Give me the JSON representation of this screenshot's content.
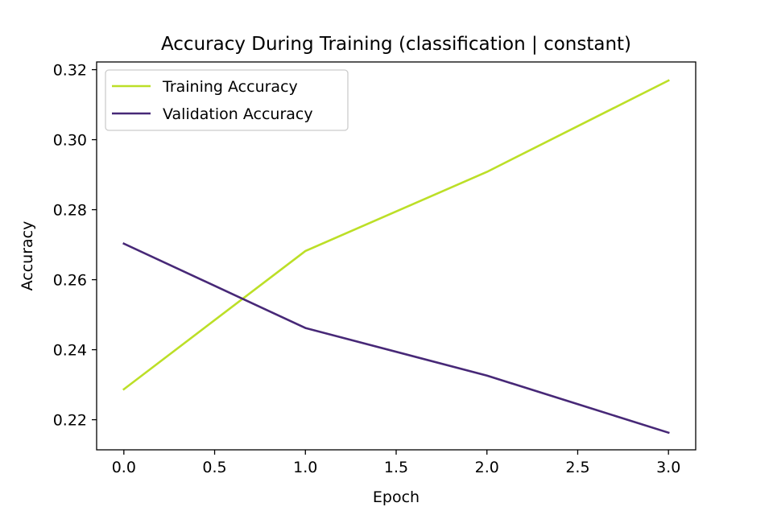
{
  "chart_data": {
    "type": "line",
    "title": "Accuracy During Training (classification | constant)",
    "xlabel": "Epoch",
    "ylabel": "Accuracy",
    "xlim": [
      -0.15,
      3.15
    ],
    "ylim": [
      0.2114,
      0.3222
    ],
    "x_ticks": [
      0.0,
      0.5,
      1.0,
      1.5,
      2.0,
      2.5,
      3.0
    ],
    "x_tick_labels": [
      "0.0",
      "0.5",
      "1.0",
      "1.5",
      "2.0",
      "2.5",
      "3.0"
    ],
    "y_ticks": [
      0.22,
      0.24,
      0.26,
      0.28,
      0.3,
      0.32
    ],
    "y_tick_labels": [
      "0.22",
      "0.24",
      "0.26",
      "0.28",
      "0.30",
      "0.32"
    ],
    "grid": false,
    "legend_position": "top-left",
    "x": [
      0,
      1,
      2,
      3
    ],
    "series": [
      {
        "name": "Training Accuracy",
        "color": "#bcdf27",
        "values": [
          0.2287,
          0.2682,
          0.2908,
          0.3169
        ]
      },
      {
        "name": "Validation Accuracy",
        "color": "#472877",
        "values": [
          0.2703,
          0.2462,
          0.2326,
          0.2163
        ]
      }
    ]
  }
}
